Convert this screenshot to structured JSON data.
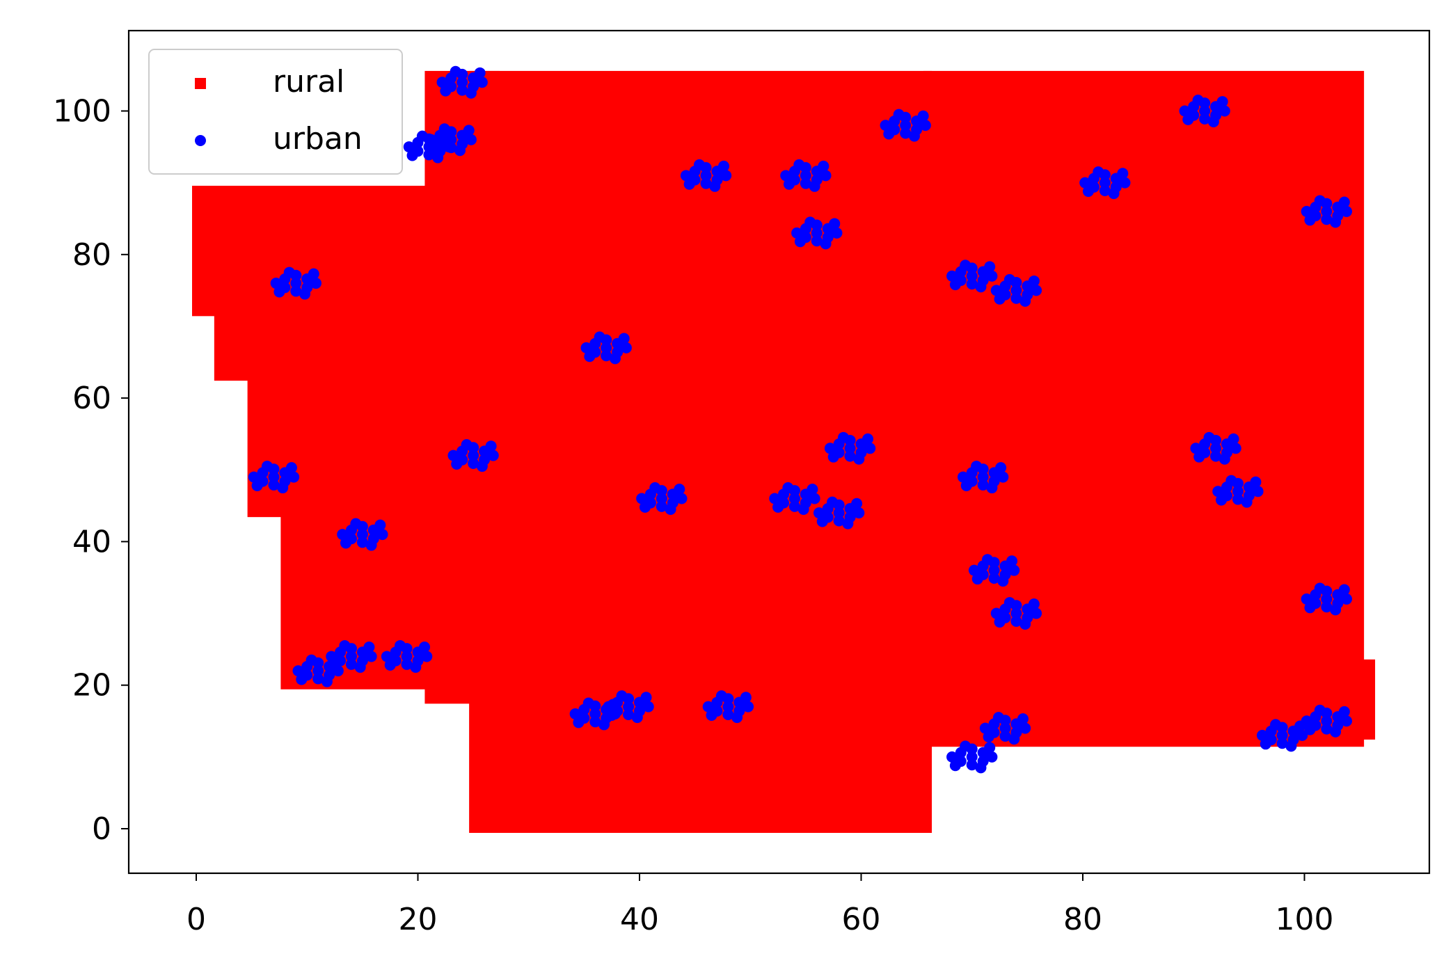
{
  "chart_data": {
    "type": "scatter",
    "title": "",
    "xlabel": "",
    "ylabel": "",
    "xlim": [
      -6,
      111
    ],
    "ylim": [
      -6,
      111
    ],
    "xticks": [
      0,
      20,
      40,
      60,
      80,
      100
    ],
    "yticks": [
      0,
      20,
      40,
      60,
      80,
      100
    ],
    "xtick_labels": [
      "0",
      "20",
      "40",
      "60",
      "80",
      "100"
    ],
    "ytick_labels": [
      "0",
      "20",
      "40",
      "60",
      "80",
      "100"
    ],
    "grid": false,
    "legend_position": "top-left",
    "series": [
      {
        "name": "rural",
        "color": "#ff0000",
        "marker": "square",
        "description_of_extent": "dense grid of points filling the state-shaped region between roughly x 0-106 and y 0-105",
        "regions": [
          {
            "x": [
              0,
              23
            ],
            "y": [
              72,
              89
            ]
          },
          {
            "x": [
              2,
              22
            ],
            "y": [
              63,
              82
            ]
          },
          {
            "x": [
              5,
              21
            ],
            "y": [
              44,
              82
            ]
          },
          {
            "x": [
              8,
              21
            ],
            "y": [
              20,
              82
            ]
          },
          {
            "x": [
              21,
              27
            ],
            "y": [
              18,
              105
            ]
          },
          {
            "x": [
              25,
              66
            ],
            "y": [
              0,
              105
            ]
          },
          {
            "x": [
              66,
              105
            ],
            "y": [
              12,
              105
            ]
          },
          {
            "x": [
              98,
              106
            ],
            "y": [
              13,
              23
            ]
          }
        ]
      },
      {
        "name": "urban",
        "color": "#0000ff",
        "marker": "circle",
        "clusters": [
          {
            "x": 24,
            "y": 104
          },
          {
            "x": 23,
            "y": 96
          },
          {
            "x": 21,
            "y": 95
          },
          {
            "x": 64,
            "y": 98
          },
          {
            "x": 46,
            "y": 91
          },
          {
            "x": 55,
            "y": 91
          },
          {
            "x": 82,
            "y": 90
          },
          {
            "x": 91,
            "y": 100
          },
          {
            "x": 102,
            "y": 86
          },
          {
            "x": 56,
            "y": 83
          },
          {
            "x": 9,
            "y": 76
          },
          {
            "x": 70,
            "y": 77
          },
          {
            "x": 74,
            "y": 75
          },
          {
            "x": 37,
            "y": 67
          },
          {
            "x": 92,
            "y": 53
          },
          {
            "x": 94,
            "y": 47
          },
          {
            "x": 59,
            "y": 53
          },
          {
            "x": 25,
            "y": 52
          },
          {
            "x": 7,
            "y": 49
          },
          {
            "x": 42,
            "y": 46
          },
          {
            "x": 54,
            "y": 46
          },
          {
            "x": 58,
            "y": 44
          },
          {
            "x": 71,
            "y": 49
          },
          {
            "x": 15,
            "y": 41
          },
          {
            "x": 72,
            "y": 36
          },
          {
            "x": 74,
            "y": 30
          },
          {
            "x": 102,
            "y": 32
          },
          {
            "x": 14,
            "y": 24
          },
          {
            "x": 19,
            "y": 24
          },
          {
            "x": 11,
            "y": 22
          },
          {
            "x": 36,
            "y": 16
          },
          {
            "x": 39,
            "y": 17
          },
          {
            "x": 48,
            "y": 17
          },
          {
            "x": 73,
            "y": 14
          },
          {
            "x": 70,
            "y": 10
          },
          {
            "x": 102,
            "y": 15
          },
          {
            "x": 98,
            "y": 13
          }
        ]
      }
    ]
  }
}
